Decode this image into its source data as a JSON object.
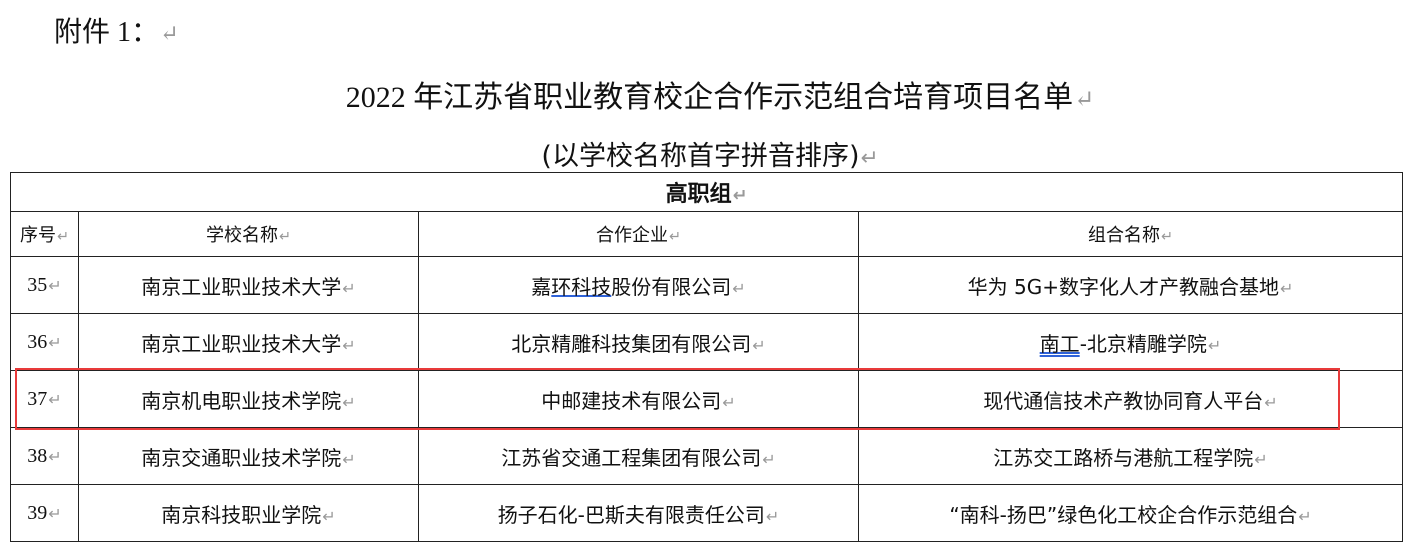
{
  "annex_label": "附件 1：",
  "title": "2022 年江苏省职业教育校企合作示范组合培育项目名单",
  "subtitle": "(以学校名称首字拼音排序)",
  "group": "高职组",
  "columns": [
    "序号",
    "学校名称",
    "合作企业",
    "组合名称"
  ],
  "rows": [
    {
      "no": "35",
      "school": "南京工业职业技术大学",
      "company_pre": "嘉",
      "company_ul": "环科技",
      "company_post": "股份有限公司",
      "combo_pre": "",
      "combo_ul": "",
      "combo_post": "华为 5G+数字化人才产教融合基地"
    },
    {
      "no": "36",
      "school": "南京工业职业技术大学",
      "company_pre": "北京精雕科技集团有限公司",
      "company_ul": "",
      "company_post": "",
      "combo_pre": "",
      "combo_ul": "南工",
      "combo_post": "-北京精雕学院"
    },
    {
      "no": "37",
      "school": "南京机电职业技术学院",
      "company_pre": "中邮建技术有限公司",
      "company_ul": "",
      "company_post": "",
      "combo_pre": "",
      "combo_ul": "",
      "combo_post": "现代通信技术产教协同育人平台"
    },
    {
      "no": "38",
      "school": "南京交通职业技术学院",
      "company_pre": "江苏省交通工程集团有限公司",
      "company_ul": "",
      "company_post": "",
      "combo_pre": "",
      "combo_ul": "",
      "combo_post": "江苏交工路桥与港航工程学院"
    },
    {
      "no": "39",
      "school": "南京科技职业学院",
      "company_pre": "扬子石化-巴斯夫有限责任公司",
      "company_ul": "",
      "company_post": "",
      "combo_pre": "",
      "combo_ul": "",
      "combo_post": "“南科-扬巴”绿色化工校企合作示范组合"
    }
  ],
  "highlight_color": "#e83a3a",
  "highlighted_row": "37"
}
